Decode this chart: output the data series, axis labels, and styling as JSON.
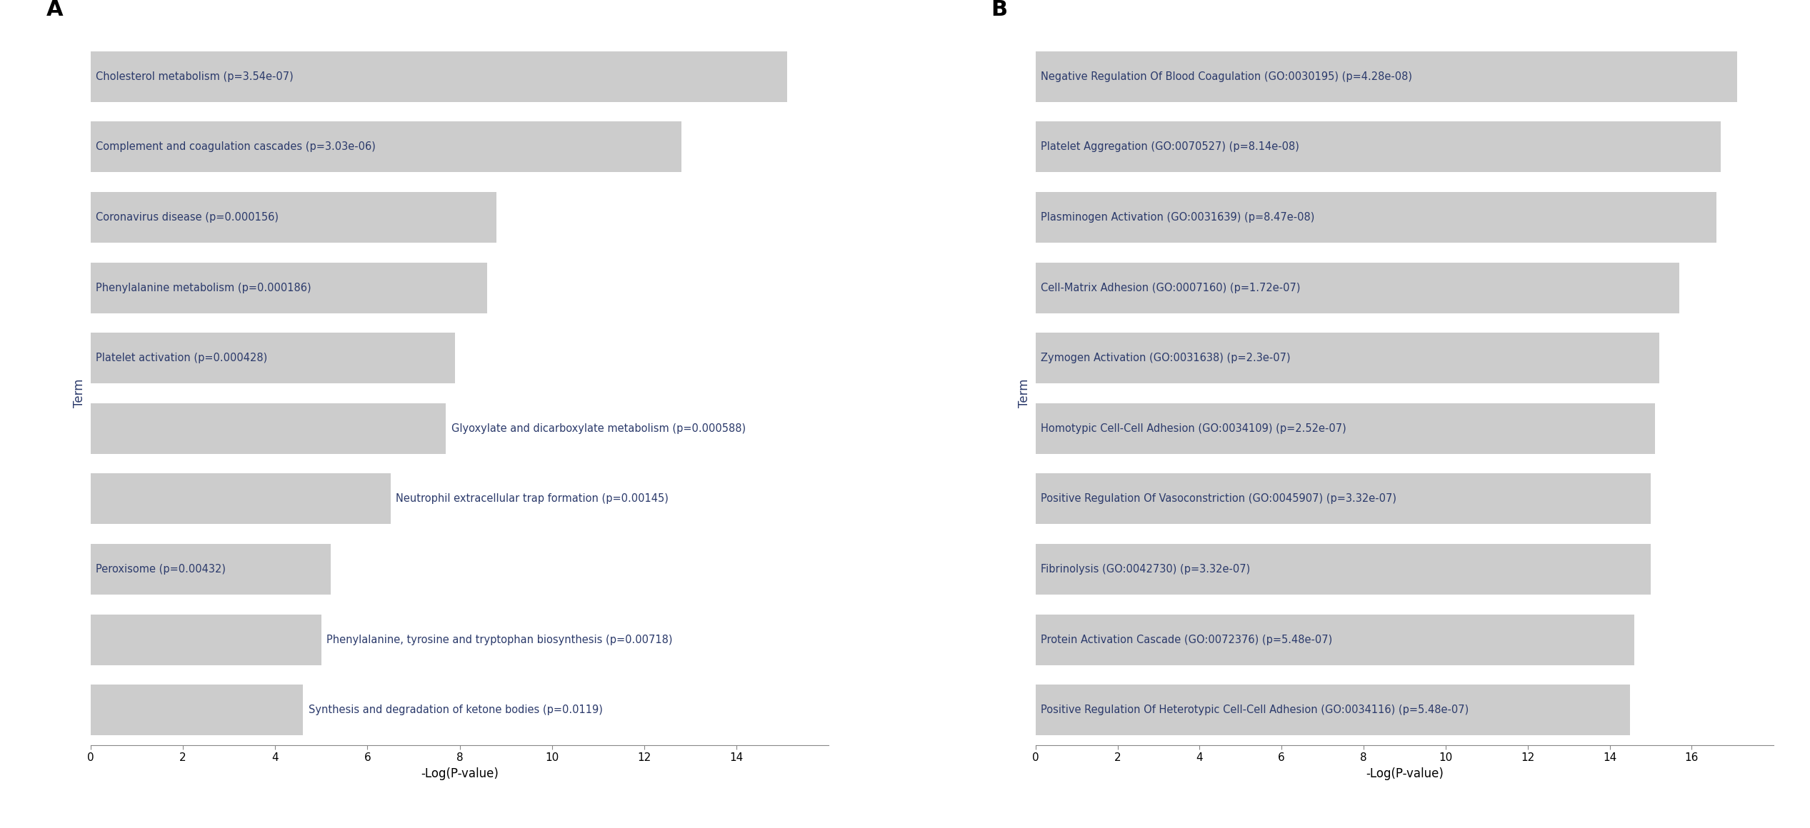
{
  "panel_a": {
    "label": "A",
    "terms": [
      "Cholesterol metabolism (p=3.54e-07)",
      "Complement and coagulation cascades (p=3.03e-06)",
      "Coronavirus disease (p=0.000156)",
      "Phenylalanine metabolism (p=0.000186)",
      "Platelet activation (p=0.000428)",
      "Glyoxylate and dicarboxylate metabolism (p=0.000588)",
      "Neutrophil extracellular trap formation (p=0.00145)",
      "Peroxisome (p=0.00432)",
      "Phenylalanine, tyrosine and tryptophan biosynthesis (p=0.00718)",
      "Synthesis and degradation of ketone bodies (p=0.0119)"
    ],
    "values": [
      15.1,
      12.8,
      8.8,
      8.6,
      7.9,
      7.7,
      6.5,
      5.2,
      5.0,
      4.6
    ],
    "xlim": [
      0,
      16
    ],
    "xticks": [
      0,
      2,
      4,
      6,
      8,
      10,
      12,
      14
    ],
    "xlabel": "-Log(P-value)",
    "ylabel": "Term",
    "bar_color": "#cccccc",
    "text_color": "#2b3a6b",
    "label_inside": [
      true,
      true,
      true,
      true,
      true,
      false,
      false,
      true,
      false,
      false
    ]
  },
  "panel_b": {
    "label": "B",
    "terms": [
      "Negative Regulation Of Blood Coagulation (GO:0030195) (p=4.28e-08)",
      "Platelet Aggregation (GO:0070527) (p=8.14e-08)",
      "Plasminogen Activation (GO:0031639) (p=8.47e-08)",
      "Cell-Matrix Adhesion (GO:0007160) (p=1.72e-07)",
      "Zymogen Activation (GO:0031638) (p=2.3e-07)",
      "Homotypic Cell-Cell Adhesion (GO:0034109) (p=2.52e-07)",
      "Positive Regulation Of Vasoconstriction (GO:0045907) (p=3.32e-07)",
      "Fibrinolysis (GO:0042730) (p=3.32e-07)",
      "Protein Activation Cascade (GO:0072376) (p=5.48e-07)",
      "Positive Regulation Of Heterotypic Cell-Cell Adhesion (GO:0034116) (p=5.48e-07)"
    ],
    "values": [
      17.1,
      16.7,
      16.6,
      15.7,
      15.2,
      15.1,
      15.0,
      15.0,
      14.6,
      14.5
    ],
    "xlim": [
      0,
      18
    ],
    "xticks": [
      0,
      2,
      4,
      6,
      8,
      10,
      12,
      14,
      16
    ],
    "xlabel": "-Log(P-value)",
    "ylabel": "Term",
    "bar_color": "#cccccc",
    "text_color": "#2b3a6b",
    "label_inside": [
      true,
      true,
      true,
      true,
      true,
      true,
      true,
      true,
      true,
      true
    ]
  },
  "background_color": "#ffffff",
  "bar_height": 0.72,
  "label_fontsize": 10.5,
  "tick_fontsize": 11,
  "axis_label_fontsize": 12,
  "panel_label_fontsize": 22
}
